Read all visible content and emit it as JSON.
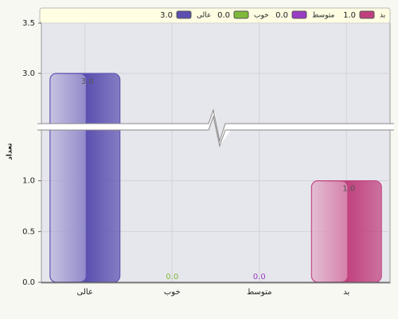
{
  "chart_data": {
    "type": "bar",
    "y_label": "تعداد",
    "categories": [
      "عالی",
      "خوب",
      "متوسط",
      "بد"
    ],
    "values": [
      3.0,
      0.0,
      0.0,
      1.0
    ],
    "value_labels": [
      "3.0",
      "0.0",
      "0.0",
      "1.0"
    ],
    "colors": [
      "#5a4fb0",
      "#7fb83a",
      "#9a3cc4",
      "#c0407e"
    ],
    "ylim": [
      0,
      3.5
    ],
    "axis_break": [
      1.5,
      2.5
    ],
    "yticks": [
      {
        "value": 0,
        "label": "0.0"
      },
      0.5,
      {
        "value": 1,
        "label": "1.0"
      },
      {
        "value": 3,
        "label": "3.0"
      },
      3.5
    ],
    "grid": true,
    "legend": "top"
  }
}
